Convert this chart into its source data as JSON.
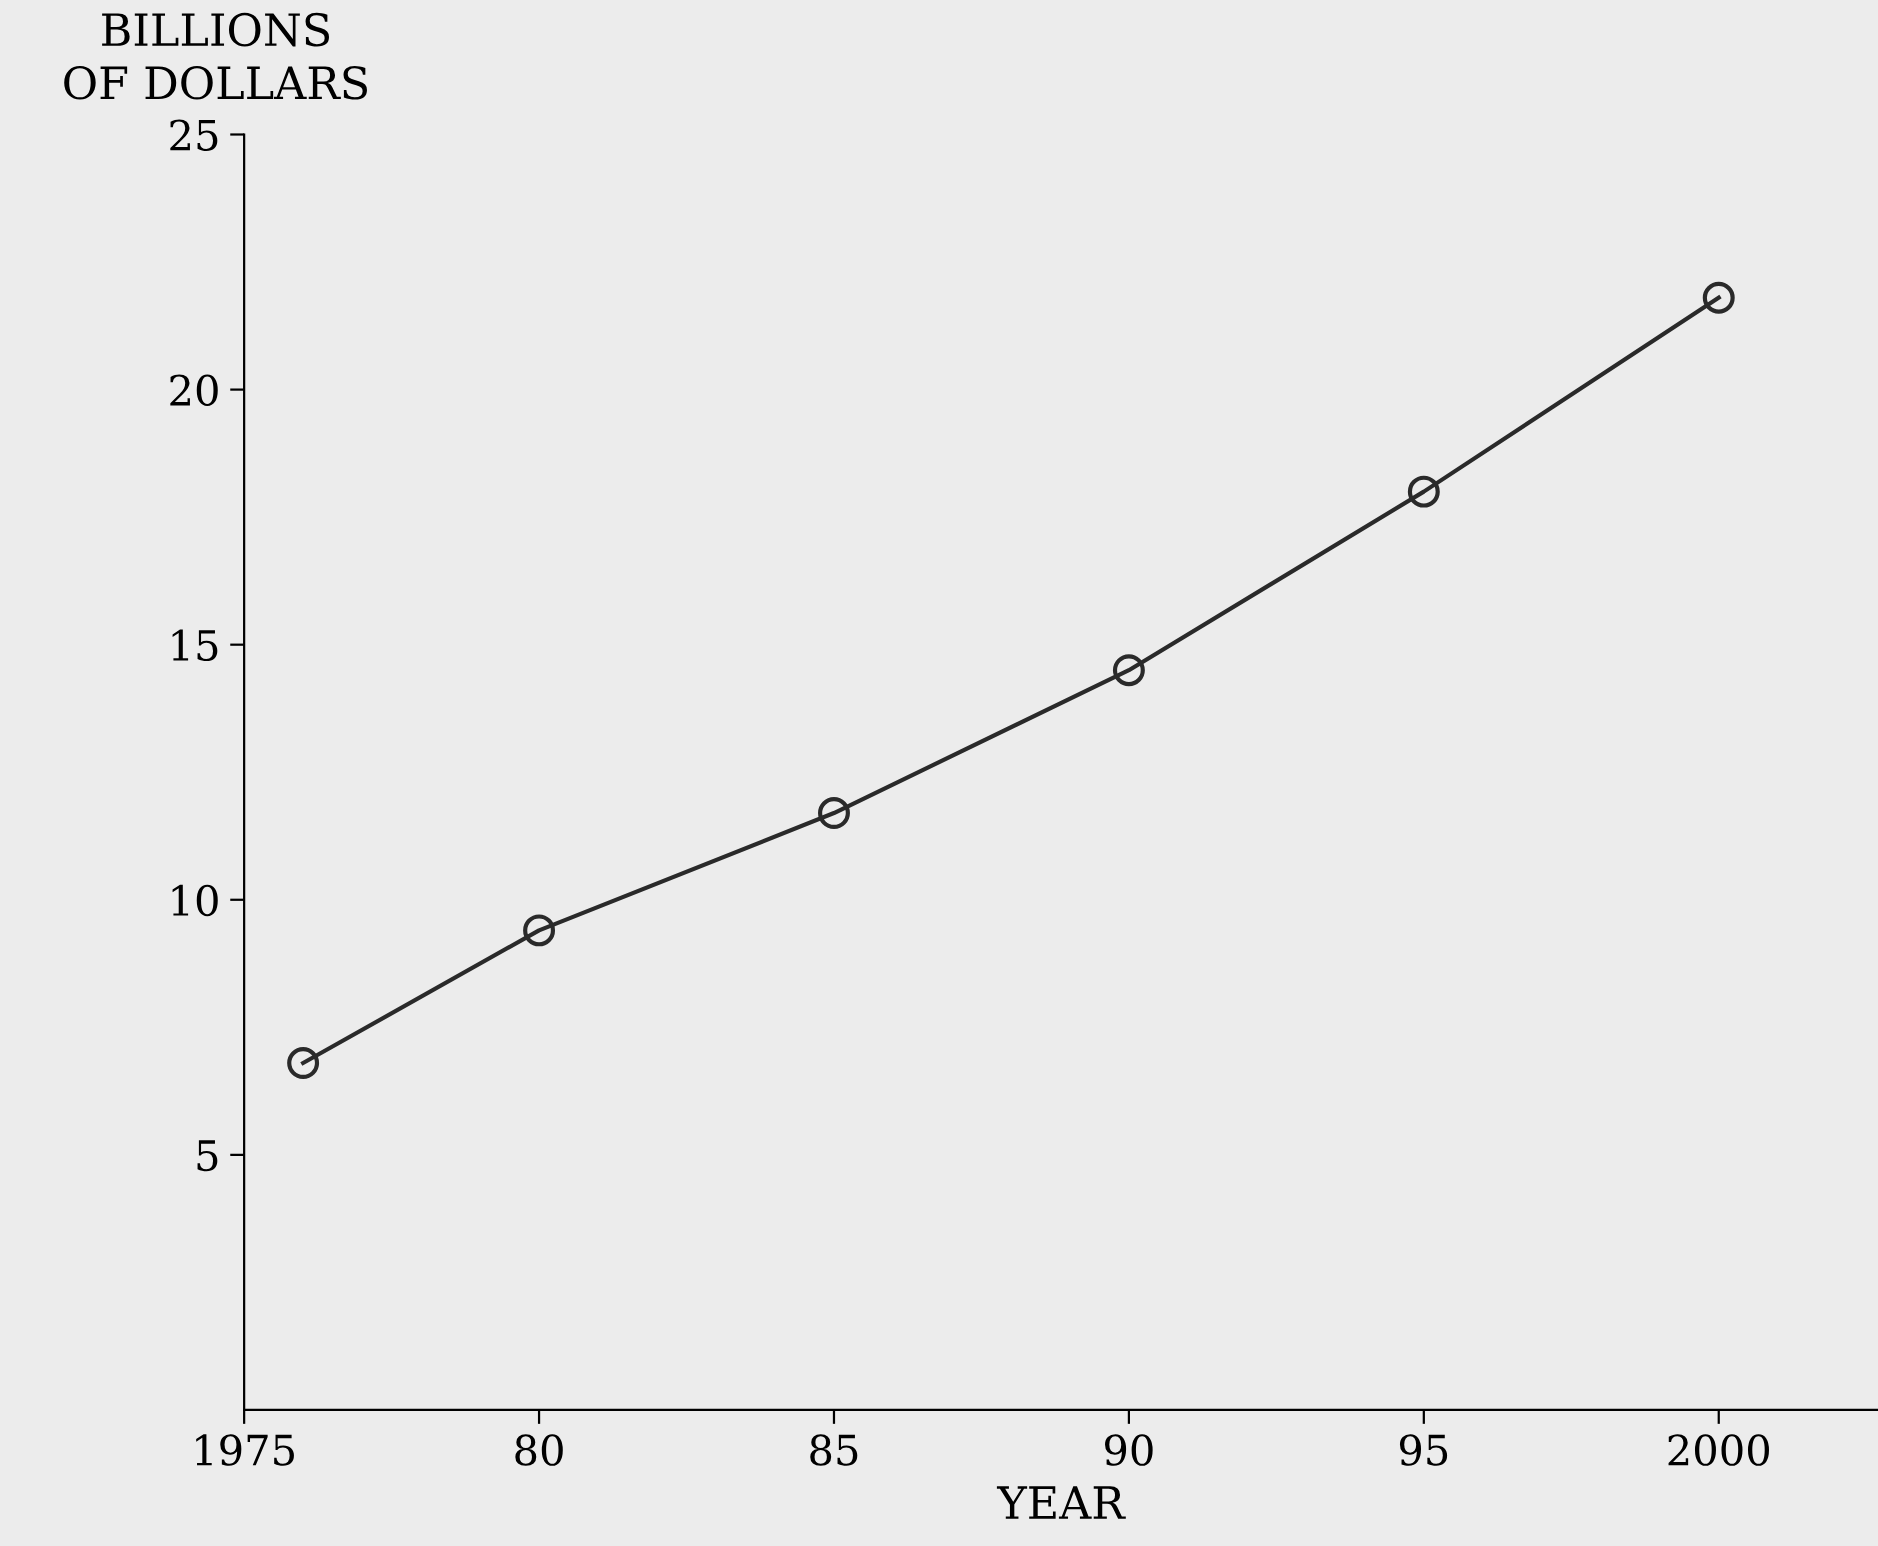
{
  "chart_data": {
    "type": "line",
    "ylabel": "BILLIONS\nOF DOLLARS",
    "xlabel": "YEAR",
    "x": [
      1976,
      1980,
      1985,
      1990,
      1995,
      2000
    ],
    "series": [
      {
        "color": "#2a2a2a",
        "values": [
          6.8,
          9.4,
          11.7,
          14.5,
          18.0,
          21.8
        ]
      }
    ],
    "xlim": [
      1975,
      2002.7
    ],
    "xticks": [
      1975,
      {
        "value": 1980,
        "label": "80"
      },
      {
        "value": 1985,
        "label": "85"
      },
      {
        "value": 1990,
        "label": "90"
      },
      {
        "value": 1995,
        "label": "95"
      },
      2000
    ],
    "ylim": [
      0,
      25
    ],
    "yticks": [
      5,
      10,
      15,
      20,
      25
    ],
    "marker": "circle",
    "line_style": "solid",
    "grid": false,
    "legend": false
  }
}
